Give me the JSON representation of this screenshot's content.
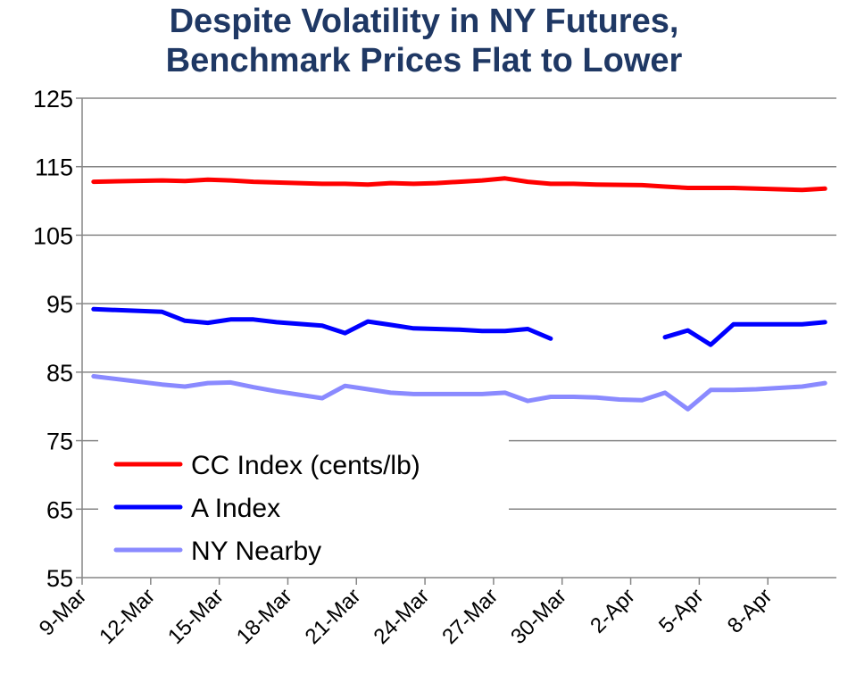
{
  "chart_data": {
    "type": "line",
    "title_lines": [
      "Despite Volatility in NY Futures,",
      "Benchmark Prices Flat to Lower"
    ],
    "xlabel": "",
    "ylabel": "",
    "ylim": [
      55,
      125
    ],
    "yticks": [
      55,
      65,
      75,
      85,
      95,
      105,
      115,
      125
    ],
    "x_tick_labels": [
      "9-Mar",
      "12-Mar",
      "15-Mar",
      "18-Mar",
      "21-Mar",
      "24-Mar",
      "27-Mar",
      "30-Mar",
      "2-Apr",
      "5-Apr",
      "8-Apr"
    ],
    "x_tick_days": [
      0,
      3,
      6,
      9,
      12,
      15,
      18,
      21,
      24,
      27,
      30
    ],
    "xlim_days": [
      0,
      33
    ],
    "grid": "horizontal",
    "legend_position": "bottom-left",
    "series": [
      {
        "name": "CC Index (cents/lb)",
        "color": "#ff0000",
        "points": [
          [
            0.5,
            112.8
          ],
          [
            3.5,
            113.0
          ],
          [
            4.5,
            112.9
          ],
          [
            5.5,
            113.1
          ],
          [
            6.5,
            113.0
          ],
          [
            7.5,
            112.8
          ],
          [
            9.5,
            112.6
          ],
          [
            10.5,
            112.5
          ],
          [
            11.5,
            112.5
          ],
          [
            12.5,
            112.4
          ],
          [
            13.5,
            112.6
          ],
          [
            14.5,
            112.5
          ],
          [
            15.5,
            112.6
          ],
          [
            16.5,
            112.8
          ],
          [
            17.5,
            113.0
          ],
          [
            18.5,
            113.3
          ],
          [
            19.5,
            112.8
          ],
          [
            20.5,
            112.5
          ],
          [
            21.5,
            112.5
          ],
          [
            22.5,
            112.4
          ],
          [
            24.5,
            112.3
          ],
          [
            25.5,
            112.1
          ],
          [
            26.5,
            111.9
          ],
          [
            27.5,
            111.9
          ],
          [
            28.5,
            111.9
          ],
          [
            29.5,
            111.8
          ],
          [
            30.5,
            111.7
          ],
          [
            31.5,
            111.6
          ],
          [
            32.5,
            111.8
          ]
        ]
      },
      {
        "name": "A Index",
        "color": "#0000ff",
        "points": [
          [
            0.5,
            94.2
          ],
          [
            3.5,
            93.8
          ],
          [
            4.5,
            92.5
          ],
          [
            5.5,
            92.2
          ],
          [
            6.5,
            92.7
          ],
          [
            7.5,
            92.7
          ],
          [
            8.5,
            92.3
          ],
          [
            10.5,
            91.8
          ],
          [
            11.5,
            90.7
          ],
          [
            12.5,
            92.4
          ],
          [
            13.5,
            91.9
          ],
          [
            14.5,
            91.4
          ],
          [
            16.5,
            91.2
          ],
          [
            17.5,
            91.0
          ],
          [
            18.5,
            91.0
          ],
          [
            19.5,
            91.3
          ],
          [
            20.5,
            89.9
          ],
          null,
          [
            25.5,
            90.1
          ],
          [
            26.5,
            91.1
          ],
          [
            27.5,
            89.0
          ],
          [
            28.5,
            92.0
          ],
          [
            29.5,
            92.0
          ],
          [
            31.5,
            92.0
          ],
          [
            32.5,
            92.3
          ]
        ]
      },
      {
        "name": "NY Nearby",
        "color": "#8a8aff",
        "points": [
          [
            0.5,
            84.4
          ],
          [
            3.5,
            83.2
          ],
          [
            4.5,
            82.9
          ],
          [
            5.5,
            83.4
          ],
          [
            6.5,
            83.5
          ],
          [
            7.5,
            82.8
          ],
          [
            8.5,
            82.2
          ],
          [
            10.5,
            81.2
          ],
          [
            11.5,
            83.0
          ],
          [
            12.5,
            82.5
          ],
          [
            13.5,
            82.0
          ],
          [
            14.5,
            81.8
          ],
          [
            16.5,
            81.8
          ],
          [
            17.5,
            81.8
          ],
          [
            18.5,
            82.0
          ],
          [
            19.5,
            80.8
          ],
          [
            20.5,
            81.4
          ],
          [
            21.5,
            81.4
          ],
          [
            22.5,
            81.3
          ],
          [
            23.5,
            81.0
          ],
          [
            24.5,
            80.9
          ],
          [
            25.5,
            82.0
          ],
          [
            26.5,
            79.6
          ],
          [
            27.5,
            82.4
          ],
          [
            28.5,
            82.4
          ],
          [
            29.5,
            82.5
          ],
          [
            30.5,
            82.7
          ],
          [
            31.5,
            82.9
          ],
          [
            32.5,
            83.4
          ]
        ]
      }
    ]
  }
}
